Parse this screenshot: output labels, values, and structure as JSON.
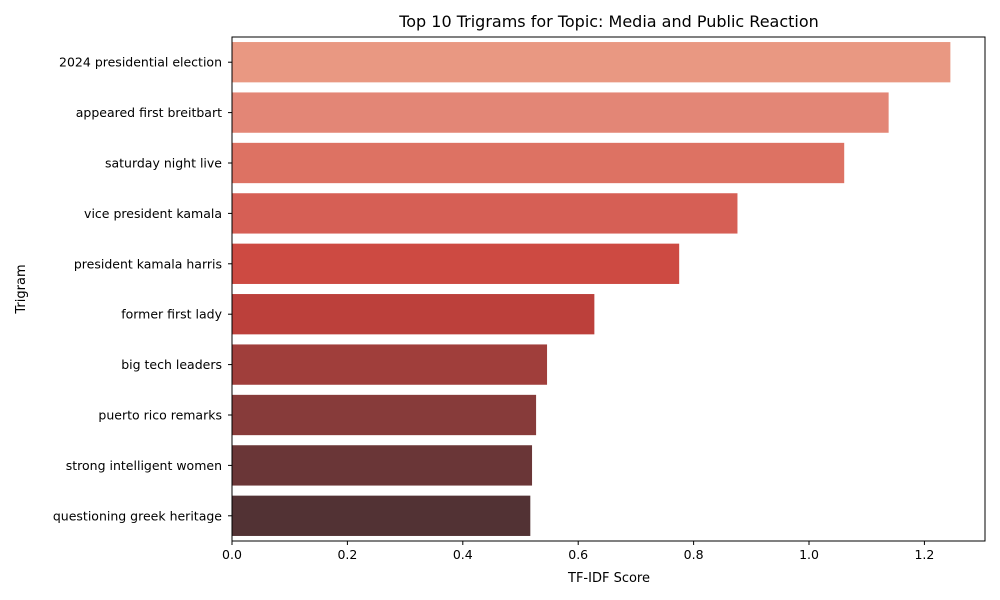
{
  "chart_data": {
    "type": "bar",
    "orientation": "horizontal",
    "title": "Top 10 Trigrams for Topic: Media and Public Reaction",
    "xlabel": "TF-IDF Score",
    "ylabel": "Trigram",
    "xlim": [
      0,
      1.305
    ],
    "xticks": [
      "0.0",
      "0.2",
      "0.4",
      "0.6",
      "0.8",
      "1.0",
      "1.2"
    ],
    "grid": false,
    "legend": "none",
    "categories": [
      "2024 presidential election",
      "appeared first breitbart",
      "saturday night live",
      "vice president kamala",
      "president kamala harris",
      "former first lady",
      "big tech leaders",
      "puerto rico remarks",
      "strong intelligent women",
      "questioning greek heritage"
    ],
    "values": [
      1.245,
      1.138,
      1.061,
      0.876,
      0.775,
      0.628,
      0.546,
      0.527,
      0.52,
      0.517
    ],
    "colors": [
      "#e99882",
      "#e38676",
      "#dd7263",
      "#d65f55",
      "#cd4a42",
      "#bc403b",
      "#a03e3b",
      "#873b3a",
      "#6a3637",
      "#523234"
    ]
  }
}
